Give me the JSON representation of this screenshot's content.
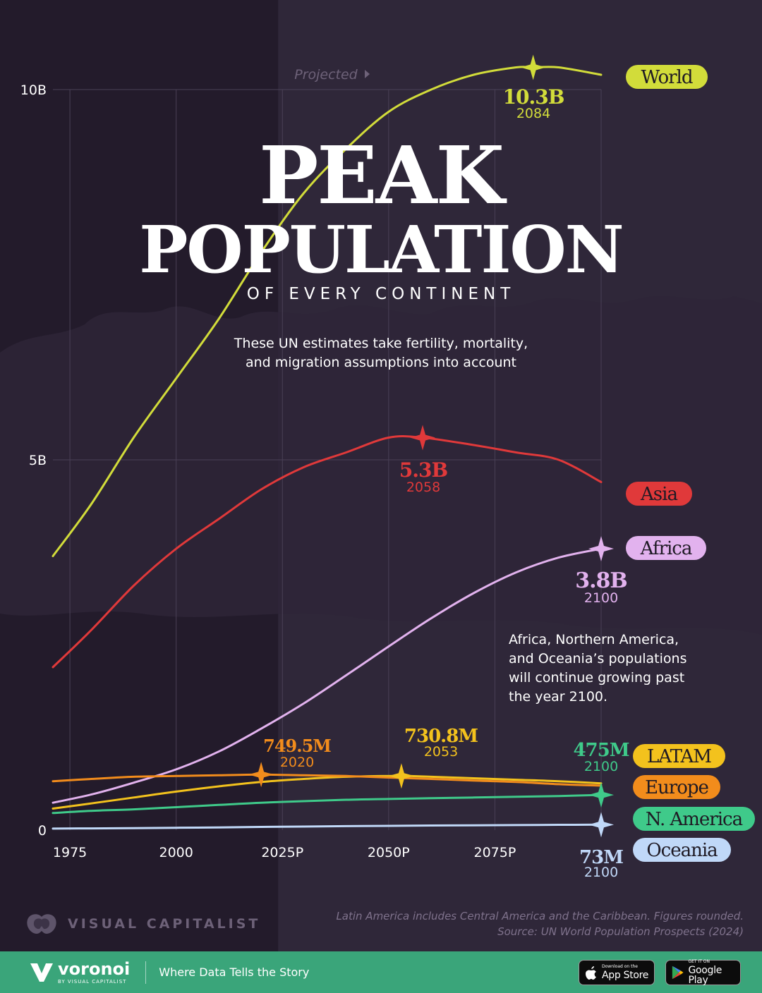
{
  "title_line1": "PEAK",
  "title_line2": "POPULATION",
  "subtitle": "OF EVERY CONTINENT",
  "intro_lines": [
    "These UN estimates take fertility, mortality,",
    "and migration assumptions into account"
  ],
  "note_lines": [
    "Africa, Northern America,",
    "and Oceania’s populations",
    "will continue growing past",
    "the year 2100."
  ],
  "projected_label": "Projected",
  "footnote_lines": [
    "Latin America includes Central America and the Caribbean. Figures rounded.",
    "Source: UN World Population Prospects (2024)"
  ],
  "brand": {
    "name": "VISUAL CAPITALIST"
  },
  "footer": {
    "logo": "voronoi",
    "logo_sub": "BY VISUAL CAPITALIST",
    "tagline": "Where Data Tells the Story",
    "app_store_small": "Download on the",
    "app_store_big": "App Store",
    "google_play_small": "GET IT ON",
    "google_play_big": "Google Play"
  },
  "colors": {
    "background": "#231b2b",
    "grid": "#4a4056",
    "axis_text": "#ffffff",
    "footer_bar": "#3aa57a"
  },
  "chart_data": {
    "type": "line",
    "xlim": [
      1971,
      2100
    ],
    "ylim": [
      0,
      10
    ],
    "y_unit": "billions",
    "x_ticks": [
      {
        "value": 1975,
        "label": "1975"
      },
      {
        "value": 2000,
        "label": "2000"
      },
      {
        "value": 2025,
        "label": "2025P"
      },
      {
        "value": 2050,
        "label": "2050P"
      },
      {
        "value": 2075,
        "label": "2075P"
      }
    ],
    "y_ticks": [
      {
        "value": 0,
        "label": "0"
      },
      {
        "value": 5,
        "label": "5B"
      },
      {
        "value": 10,
        "label": "10B"
      }
    ],
    "x_grid": [
      1975,
      2000,
      2025,
      2050,
      2075,
      2100
    ],
    "grid": true,
    "projection_start": 2024,
    "series": [
      {
        "name": "World",
        "color": "#d2dc3a",
        "x": [
          1971,
          1980,
          1990,
          2000,
          2010,
          2020,
          2030,
          2040,
          2050,
          2060,
          2070,
          2080,
          2084,
          2090,
          2100
        ],
        "y": [
          3.7,
          4.4,
          5.3,
          6.1,
          6.9,
          7.8,
          8.6,
          9.2,
          9.7,
          10.0,
          10.2,
          10.3,
          10.3,
          10.3,
          10.2
        ],
        "peak": {
          "value_label": "10.3B",
          "year_label": "2084",
          "x": 2084,
          "y": 10.3
        }
      },
      {
        "name": "Asia",
        "color": "#e0393a",
        "x": [
          1971,
          1980,
          1990,
          2000,
          2010,
          2020,
          2030,
          2040,
          2050,
          2058,
          2070,
          2080,
          2090,
          2100
        ],
        "y": [
          2.2,
          2.7,
          3.3,
          3.8,
          4.2,
          4.6,
          4.9,
          5.1,
          5.3,
          5.3,
          5.2,
          5.1,
          5.0,
          4.7
        ],
        "peak": {
          "value_label": "5.3B",
          "year_label": "2058",
          "x": 2058,
          "y": 5.3
        }
      },
      {
        "name": "Africa",
        "color": "#e2b2ee",
        "x": [
          1971,
          1980,
          1990,
          2000,
          2010,
          2020,
          2030,
          2040,
          2050,
          2060,
          2070,
          2080,
          2090,
          2100
        ],
        "y": [
          0.37,
          0.48,
          0.64,
          0.82,
          1.06,
          1.37,
          1.71,
          2.09,
          2.48,
          2.86,
          3.2,
          3.48,
          3.68,
          3.8
        ],
        "peak": {
          "value_label": "3.8B",
          "year_label": "2100",
          "x": 2100,
          "y": 3.8
        }
      },
      {
        "name": "LATAM",
        "color": "#f3c21d",
        "x": [
          1971,
          1980,
          1990,
          2000,
          2010,
          2020,
          2030,
          2040,
          2053,
          2060,
          2070,
          2080,
          2090,
          2100
        ],
        "y": [
          0.29,
          0.36,
          0.44,
          0.52,
          0.59,
          0.65,
          0.69,
          0.72,
          0.73,
          0.72,
          0.7,
          0.68,
          0.66,
          0.63
        ],
        "peak": {
          "value_label": "730.8M",
          "year_label": "2053",
          "x": 2053,
          "y": 0.7308
        }
      },
      {
        "name": "Europe",
        "color": "#f28c1c",
        "x": [
          1971,
          1980,
          1990,
          2000,
          2010,
          2020,
          2030,
          2040,
          2050,
          2060,
          2070,
          2080,
          2090,
          2100
        ],
        "y": [
          0.66,
          0.69,
          0.72,
          0.73,
          0.74,
          0.75,
          0.74,
          0.73,
          0.71,
          0.69,
          0.67,
          0.65,
          0.62,
          0.6
        ],
        "peak": {
          "value_label": "749.5M",
          "year_label": "2020",
          "x": 2020,
          "y": 0.7495
        }
      },
      {
        "name": "N. America",
        "color": "#3fca8a",
        "x": [
          1971,
          1980,
          1990,
          2000,
          2010,
          2020,
          2030,
          2040,
          2050,
          2060,
          2070,
          2080,
          2090,
          2100
        ],
        "y": [
          0.23,
          0.26,
          0.28,
          0.31,
          0.34,
          0.37,
          0.39,
          0.41,
          0.42,
          0.43,
          0.44,
          0.45,
          0.46,
          0.475
        ],
        "peak": {
          "value_label": "475M",
          "year_label": "2100",
          "x": 2100,
          "y": 0.475
        }
      },
      {
        "name": "Oceania",
        "color": "#c0d8f8",
        "x": [
          1971,
          1980,
          1990,
          2000,
          2010,
          2020,
          2030,
          2040,
          2050,
          2060,
          2070,
          2080,
          2090,
          2100
        ],
        "y": [
          0.02,
          0.023,
          0.027,
          0.031,
          0.036,
          0.043,
          0.048,
          0.053,
          0.057,
          0.062,
          0.065,
          0.068,
          0.071,
          0.073
        ],
        "peak": {
          "value_label": "73M",
          "year_label": "2100",
          "x": 2100,
          "y": 0.073
        }
      }
    ]
  }
}
